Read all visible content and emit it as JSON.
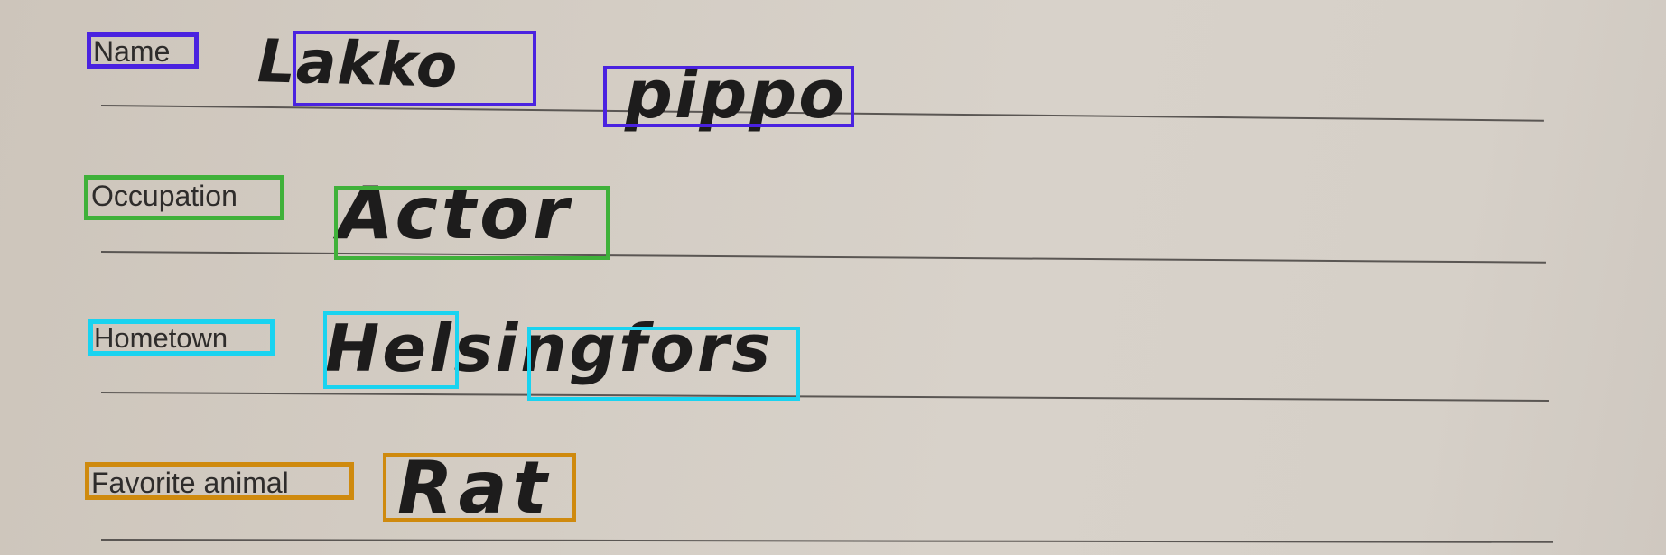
{
  "form": {
    "fields": [
      {
        "label": "Name",
        "words": [
          "Lakko",
          "pippo"
        ]
      },
      {
        "label": "Occupation",
        "words": [
          "Actor"
        ]
      },
      {
        "label": "Hometown",
        "words": [
          "Helsingfors"
        ]
      },
      {
        "label": "Favorite animal",
        "words": [
          "Rat"
        ]
      }
    ]
  },
  "box_colors": {
    "name": "#4a22e0",
    "occupation": "#3fb13a",
    "hometown": "#19d3f0",
    "favorite_animal": "#cf8a0e"
  }
}
